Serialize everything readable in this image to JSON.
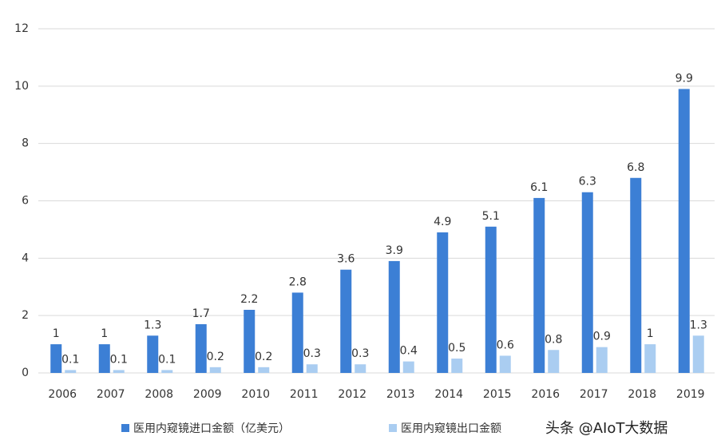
{
  "chart_data": {
    "type": "bar",
    "categories": [
      "2006",
      "2007",
      "2008",
      "2009",
      "2010",
      "2011",
      "2012",
      "2013",
      "2014",
      "2015",
      "2016",
      "2017",
      "2018",
      "2019"
    ],
    "series": [
      {
        "name": "医用内窥镜进口金额（亿美元）",
        "color": "#3c7fd5",
        "values": [
          1,
          1,
          1.3,
          1.7,
          2.2,
          2.8,
          3.6,
          3.9,
          4.9,
          5.1,
          6.1,
          6.3,
          6.8,
          9.9
        ]
      },
      {
        "name": "医用内窥镜出口金额",
        "color": "#aacdf1",
        "values": [
          0.1,
          0.1,
          0.1,
          0.2,
          0.2,
          0.3,
          0.3,
          0.4,
          0.5,
          0.6,
          0.8,
          0.9,
          1,
          1.3
        ]
      }
    ],
    "ylim": [
      0,
      12
    ],
    "yticks": [
      0,
      2,
      4,
      6,
      8,
      10,
      12
    ],
    "grid": true,
    "watermark": "头条 @AIoT大数据"
  }
}
